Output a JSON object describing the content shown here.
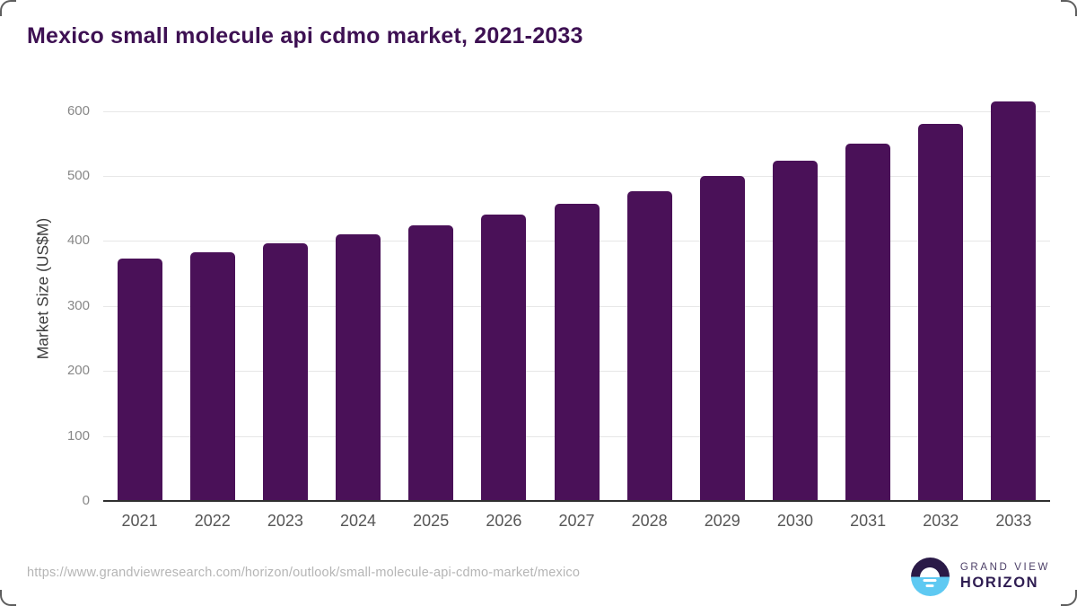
{
  "title": "Mexico small molecule api cdmo market, 2021-2033",
  "chart_data": {
    "type": "bar",
    "title": "Mexico small molecule api cdmo market, 2021-2033",
    "categories": [
      "2021",
      "2022",
      "2023",
      "2024",
      "2025",
      "2026",
      "2027",
      "2028",
      "2029",
      "2030",
      "2031",
      "2032",
      "2033"
    ],
    "values": [
      373,
      383,
      396,
      410,
      424,
      440,
      457,
      477,
      500,
      524,
      550,
      580,
      615
    ],
    "xlabel": "",
    "ylabel": "Market Size (US$M)",
    "ylim": [
      0,
      600
    ],
    "yticks": [
      0,
      100,
      200,
      300,
      400,
      500,
      600
    ],
    "bar_color": "#4a1158",
    "grid": "horizontal-only",
    "legend": "none"
  },
  "footer": {
    "source_url": "https://www.grandviewresearch.com/horizon/outlook/small-molecule-api-cdmo-market/mexico",
    "logo": {
      "line1": "GRAND VIEW",
      "line2": "HORIZON"
    }
  },
  "colors": {
    "bar": "#4a1158",
    "title_text": "#3e1153",
    "gridline": "#e7e7e7",
    "axis_line": "#2f2f2f",
    "tick_text": "#878787",
    "xtick_text": "#565656",
    "url_text": "#b5b5b5",
    "logo_dark": "#2a1a47",
    "logo_blue": "#5ec9f2"
  }
}
